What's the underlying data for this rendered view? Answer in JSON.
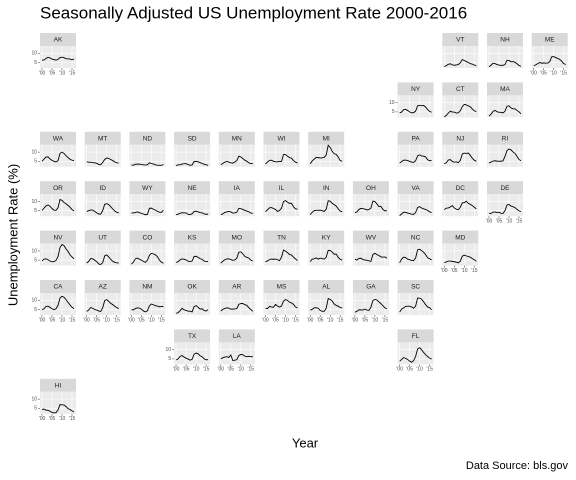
{
  "chart_data": {
    "type": "line",
    "title": "Seasonally Adjusted US Unemployment Rate 2000-2016",
    "x_label": "Year",
    "y_label": "Unemployment Rate (%)",
    "caption": "Data Source: bls.gov",
    "x": [
      2000,
      2001,
      2002,
      2003,
      2004,
      2005,
      2006,
      2007,
      2008,
      2009,
      2010,
      2011,
      2012,
      2013,
      2014,
      2015,
      2016
    ],
    "xlim": [
      1999,
      2017
    ],
    "xticks": [
      {
        "value": 2000,
        "label": "'00"
      },
      {
        "value": 2005,
        "label": "'05"
      },
      {
        "value": 2010,
        "label": "'10"
      },
      {
        "value": 2015,
        "label": "'15"
      }
    ],
    "ylim": [
      2,
      14
    ],
    "yticks": [
      5,
      10
    ],
    "grid": true,
    "color": "#000000",
    "facets": [
      {
        "name": "AK",
        "values": [
          6.3,
          6.4,
          7.2,
          7.8,
          7.5,
          6.9,
          6.6,
          6.3,
          6.7,
          7.7,
          7.9,
          7.6,
          7.1,
          7.0,
          6.9,
          6.5,
          6.9
        ]
      },
      {
        "name": "VT",
        "values": [
          2.8,
          3.3,
          4.0,
          4.3,
          3.7,
          3.5,
          3.7,
          3.9,
          4.8,
          6.6,
          6.1,
          5.5,
          5.0,
          4.4,
          4.1,
          3.6,
          3.2
        ]
      },
      {
        "name": "NH",
        "values": [
          2.7,
          3.5,
          4.6,
          4.4,
          3.9,
          3.6,
          3.4,
          3.5,
          3.9,
          6.2,
          6.1,
          5.4,
          5.5,
          5.1,
          4.3,
          3.4,
          2.9
        ]
      },
      {
        "name": "ME",
        "values": [
          3.3,
          3.7,
          4.4,
          5.0,
          4.6,
          4.8,
          4.6,
          4.7,
          5.4,
          8.1,
          8.2,
          7.7,
          7.2,
          6.7,
          5.7,
          4.4,
          3.9
        ]
      },
      {
        "name": "NY",
        "values": [
          4.5,
          4.9,
          6.2,
          6.4,
          5.8,
          5.0,
          4.5,
          4.6,
          5.4,
          8.3,
          8.6,
          8.3,
          8.5,
          7.7,
          6.3,
          5.3,
          4.8
        ]
      },
      {
        "name": "CT",
        "values": [
          2.3,
          3.1,
          4.4,
          5.4,
          4.9,
          4.9,
          4.4,
          4.5,
          5.6,
          7.9,
          9.1,
          8.8,
          8.3,
          7.8,
          6.6,
          5.6,
          5.1
        ]
      },
      {
        "name": "MA",
        "values": [
          2.7,
          3.7,
          5.2,
          5.8,
          5.1,
          4.8,
          4.8,
          4.5,
          5.4,
          8.1,
          8.3,
          7.2,
          6.7,
          6.7,
          5.8,
          5.0,
          4.0
        ]
      },
      {
        "name": "WA",
        "values": [
          5.0,
          6.2,
          7.3,
          7.4,
          6.3,
          5.5,
          5.0,
          4.7,
          5.3,
          9.3,
          10.0,
          9.3,
          8.1,
          7.0,
          6.1,
          5.6,
          5.4
        ]
      },
      {
        "name": "MT",
        "values": [
          4.8,
          4.5,
          4.5,
          4.3,
          4.2,
          3.9,
          3.3,
          3.1,
          4.4,
          6.0,
          6.8,
          6.6,
          6.0,
          5.4,
          4.7,
          4.2,
          4.1
        ]
      },
      {
        "name": "ND",
        "values": [
          3.0,
          2.8,
          3.4,
          3.5,
          3.4,
          3.3,
          3.1,
          3.0,
          3.1,
          4.2,
          3.8,
          3.5,
          3.1,
          2.9,
          2.8,
          2.8,
          3.2
        ]
      },
      {
        "name": "SD",
        "values": [
          2.7,
          3.1,
          3.1,
          3.5,
          3.7,
          3.7,
          3.2,
          2.8,
          3.0,
          4.9,
          5.0,
          4.7,
          4.3,
          3.8,
          3.4,
          3.1,
          2.8
        ]
      },
      {
        "name": "MN",
        "values": [
          3.1,
          3.9,
          4.5,
          4.9,
          4.6,
          4.2,
          4.0,
          4.6,
          5.4,
          7.8,
          7.4,
          6.5,
          5.6,
          5.0,
          4.2,
          3.7,
          3.9
        ]
      },
      {
        "name": "WI",
        "values": [
          3.5,
          4.6,
          5.5,
          5.6,
          5.0,
          4.7,
          4.7,
          4.9,
          4.9,
          8.7,
          8.7,
          7.8,
          7.0,
          6.7,
          5.4,
          4.5,
          4.1
        ]
      },
      {
        "name": "MI",
        "values": [
          3.7,
          5.2,
          6.2,
          7.1,
          7.0,
          6.8,
          6.9,
          7.1,
          8.4,
          13.7,
          12.6,
          10.4,
          9.1,
          8.8,
          7.3,
          5.4,
          5.0
        ]
      },
      {
        "name": "PA",
        "values": [
          4.1,
          4.8,
          5.6,
          5.7,
          5.4,
          5.0,
          4.6,
          4.4,
          5.3,
          8.0,
          8.5,
          7.9,
          7.8,
          7.4,
          5.9,
          5.3,
          5.4
        ]
      },
      {
        "name": "NJ",
        "values": [
          3.7,
          4.2,
          5.7,
          5.9,
          4.9,
          4.5,
          4.7,
          4.3,
          5.5,
          9.0,
          9.5,
          9.3,
          9.5,
          8.2,
          6.7,
          5.6,
          5.0
        ]
      },
      {
        "name": "RI",
        "values": [
          4.1,
          4.6,
          5.1,
          5.3,
          5.1,
          5.0,
          5.1,
          5.2,
          7.7,
          10.9,
          11.7,
          11.2,
          10.1,
          9.3,
          7.7,
          6.0,
          5.3
        ]
      },
      {
        "name": "OR",
        "values": [
          5.1,
          6.4,
          7.6,
          8.1,
          7.4,
          6.2,
          5.3,
          5.2,
          6.6,
          11.1,
          10.6,
          9.5,
          8.8,
          7.9,
          6.9,
          5.6,
          4.9
        ]
      },
      {
        "name": "ID",
        "values": [
          4.6,
          5.0,
          5.4,
          5.3,
          4.6,
          3.8,
          3.2,
          3.1,
          5.1,
          8.5,
          8.8,
          8.4,
          7.2,
          6.0,
          4.8,
          4.2,
          3.8
        ]
      },
      {
        "name": "WY",
        "values": [
          3.8,
          3.8,
          4.0,
          4.4,
          3.9,
          3.6,
          3.2,
          2.8,
          3.0,
          6.3,
          6.4,
          5.8,
          5.3,
          4.7,
          4.2,
          4.1,
          5.3
        ]
      },
      {
        "name": "NE",
        "values": [
          2.8,
          3.1,
          3.6,
          3.9,
          3.8,
          3.8,
          3.0,
          2.9,
          3.3,
          4.6,
          4.7,
          4.4,
          4.0,
          3.8,
          3.3,
          3.0,
          3.2
        ]
      },
      {
        "name": "IA",
        "values": [
          2.8,
          3.3,
          4.0,
          4.4,
          4.6,
          4.3,
          3.7,
          3.8,
          4.2,
          6.3,
          6.1,
          5.7,
          5.2,
          4.8,
          4.4,
          3.7,
          3.6
        ]
      },
      {
        "name": "IL",
        "values": [
          4.5,
          5.5,
          6.6,
          6.7,
          6.2,
          5.7,
          4.6,
          5.1,
          6.4,
          10.0,
          10.5,
          9.7,
          9.0,
          9.1,
          7.1,
          6.0,
          5.8
        ]
      },
      {
        "name": "IN",
        "values": [
          2.9,
          4.1,
          5.1,
          5.2,
          5.2,
          5.3,
          5.0,
          4.6,
          5.8,
          10.4,
          10.2,
          9.0,
          8.3,
          7.5,
          6.0,
          4.8,
          4.4
        ]
      },
      {
        "name": "OH",
        "values": [
          4.0,
          4.3,
          5.7,
          6.2,
          6.1,
          5.9,
          5.4,
          5.6,
          6.5,
          10.2,
          10.0,
          8.7,
          7.3,
          7.4,
          5.7,
          4.9,
          5.0
        ]
      },
      {
        "name": "VA",
        "values": [
          2.3,
          3.2,
          4.2,
          4.1,
          3.7,
          3.5,
          3.1,
          3.0,
          4.0,
          6.7,
          7.2,
          6.5,
          6.0,
          5.7,
          5.2,
          4.4,
          4.0
        ]
      },
      {
        "name": "DC",
        "values": [
          5.6,
          6.4,
          6.5,
          7.0,
          7.8,
          6.5,
          5.8,
          5.5,
          6.9,
          9.3,
          9.4,
          10.2,
          9.0,
          8.5,
          7.8,
          6.9,
          6.0
        ]
      },
      {
        "name": "DE",
        "values": [
          3.6,
          3.5,
          4.2,
          4.3,
          4.0,
          4.2,
          3.6,
          3.5,
          5.0,
          8.1,
          8.4,
          7.5,
          7.2,
          6.7,
          5.7,
          4.9,
          4.5
        ]
      },
      {
        "name": "NV",
        "values": [
          4.6,
          5.5,
          5.7,
          5.2,
          4.5,
          4.1,
          4.2,
          4.8,
          6.9,
          11.8,
          13.5,
          12.9,
          11.1,
          9.8,
          7.9,
          6.7,
          5.7
        ]
      },
      {
        "name": "UT",
        "values": [
          3.4,
          4.3,
          5.8,
          5.7,
          5.0,
          4.1,
          2.9,
          2.6,
          3.6,
          7.3,
          7.8,
          6.7,
          5.4,
          4.4,
          3.8,
          3.5,
          3.4
        ]
      },
      {
        "name": "CO",
        "values": [
          2.8,
          3.9,
          5.7,
          6.1,
          5.5,
          5.0,
          4.3,
          3.8,
          4.9,
          7.6,
          8.7,
          8.4,
          7.9,
          6.9,
          5.0,
          3.9,
          3.3
        ]
      },
      {
        "name": "KS",
        "values": [
          3.7,
          4.2,
          5.1,
          5.6,
          5.5,
          5.1,
          4.4,
          4.2,
          4.5,
          7.0,
          7.1,
          6.5,
          5.8,
          5.4,
          4.5,
          4.2,
          4.2
        ]
      },
      {
        "name": "MO",
        "values": [
          3.3,
          4.4,
          5.2,
          5.6,
          5.7,
          5.3,
          4.9,
          5.1,
          6.0,
          9.3,
          9.5,
          8.4,
          7.0,
          6.5,
          6.1,
          5.0,
          4.5
        ]
      },
      {
        "name": "TN",
        "values": [
          4.0,
          4.6,
          5.2,
          5.6,
          5.4,
          5.6,
          5.2,
          4.7,
          6.6,
          10.5,
          9.9,
          9.1,
          8.0,
          7.8,
          6.6,
          5.6,
          4.8
        ]
      },
      {
        "name": "KY",
        "values": [
          4.2,
          5.5,
          5.7,
          6.2,
          5.5,
          6.1,
          5.8,
          5.5,
          6.6,
          10.3,
          10.2,
          9.4,
          8.2,
          8.3,
          6.5,
          5.4,
          5.0
        ]
      },
      {
        "name": "WV",
        "values": [
          5.5,
          5.0,
          5.9,
          6.0,
          5.3,
          5.1,
          4.9,
          4.6,
          4.3,
          8.0,
          8.7,
          8.0,
          7.5,
          6.8,
          6.6,
          6.7,
          6.0
        ]
      },
      {
        "name": "NC",
        "values": [
          3.6,
          5.5,
          6.6,
          6.4,
          5.5,
          5.2,
          4.8,
          4.7,
          6.1,
          10.6,
          10.9,
          10.2,
          9.3,
          8.0,
          6.3,
          5.7,
          5.1
        ]
      },
      {
        "name": "MD",
        "values": [
          3.6,
          4.0,
          4.5,
          4.5,
          4.3,
          4.1,
          3.9,
          3.5,
          4.4,
          7.1,
          7.7,
          7.3,
          6.9,
          6.6,
          5.8,
          5.2,
          4.4
        ]
      },
      {
        "name": "CA",
        "values": [
          4.9,
          5.4,
          6.7,
          6.8,
          6.2,
          5.4,
          4.9,
          5.4,
          7.3,
          11.2,
          12.2,
          11.7,
          10.4,
          8.9,
          7.5,
          6.2,
          5.5
        ]
      },
      {
        "name": "AZ",
        "values": [
          4.0,
          4.7,
          6.1,
          5.7,
          5.0,
          4.7,
          4.2,
          3.9,
          6.0,
          9.9,
          10.4,
          9.5,
          8.3,
          7.7,
          6.8,
          6.1,
          5.4
        ]
      },
      {
        "name": "NM",
        "values": [
          4.9,
          4.8,
          5.5,
          5.9,
          5.7,
          5.2,
          4.2,
          3.7,
          4.3,
          7.0,
          8.0,
          7.6,
          7.1,
          6.9,
          6.5,
          6.6,
          6.7
        ]
      },
      {
        "name": "OK",
        "values": [
          3.0,
          3.2,
          4.4,
          5.6,
          4.8,
          4.5,
          4.1,
          4.1,
          3.7,
          6.6,
          7.1,
          6.2,
          5.2,
          5.4,
          4.5,
          4.2,
          4.9
        ]
      },
      {
        "name": "AR",
        "values": [
          4.2,
          5.1,
          5.5,
          5.9,
          5.7,
          5.2,
          5.2,
          5.3,
          5.5,
          7.8,
          8.2,
          8.3,
          7.6,
          7.3,
          6.0,
          5.0,
          4.0
        ]
      },
      {
        "name": "MS",
        "values": [
          5.7,
          5.5,
          6.7,
          6.4,
          6.2,
          7.8,
          6.9,
          6.3,
          6.9,
          9.6,
          10.4,
          10.0,
          9.0,
          8.6,
          7.8,
          6.4,
          5.8
        ]
      },
      {
        "name": "AL",
        "values": [
          4.6,
          5.1,
          5.9,
          6.0,
          5.7,
          4.5,
          4.0,
          4.0,
          5.7,
          11.0,
          10.5,
          9.6,
          8.0,
          7.2,
          6.8,
          6.1,
          5.8
        ]
      },
      {
        "name": "GA",
        "values": [
          3.5,
          4.0,
          4.8,
          4.8,
          4.7,
          5.2,
          4.7,
          4.5,
          6.2,
          9.9,
          10.5,
          10.2,
          9.2,
          8.2,
          7.1,
          5.9,
          5.4
        ]
      },
      {
        "name": "SC",
        "values": [
          3.6,
          5.2,
          5.9,
          6.7,
          6.8,
          6.8,
          6.4,
          5.7,
          6.8,
          11.3,
          11.2,
          10.6,
          9.2,
          7.6,
          6.4,
          6.0,
          4.8
        ]
      },
      {
        "name": "TX",
        "values": [
          4.4,
          5.0,
          6.4,
          6.8,
          6.0,
          5.4,
          4.9,
          4.3,
          4.8,
          7.6,
          8.2,
          7.8,
          6.7,
          6.2,
          5.1,
          4.5,
          4.6
        ]
      },
      {
        "name": "LA",
        "values": [
          5.0,
          5.6,
          6.0,
          6.2,
          5.8,
          7.1,
          4.1,
          4.3,
          4.6,
          6.8,
          7.4,
          7.3,
          6.5,
          6.2,
          6.4,
          6.3,
          6.1
        ]
      },
      {
        "name": "FL",
        "values": [
          3.7,
          4.7,
          5.7,
          5.3,
          4.7,
          3.8,
          3.2,
          4.0,
          6.3,
          10.4,
          11.1,
          10.0,
          8.5,
          7.3,
          6.3,
          5.4,
          4.9
        ]
      },
      {
        "name": "HI",
        "values": [
          4.3,
          4.6,
          4.0,
          3.9,
          3.4,
          2.8,
          2.5,
          2.6,
          4.1,
          7.0,
          6.9,
          6.8,
          6.0,
          4.8,
          4.4,
          3.6,
          3.0
        ]
      }
    ]
  }
}
